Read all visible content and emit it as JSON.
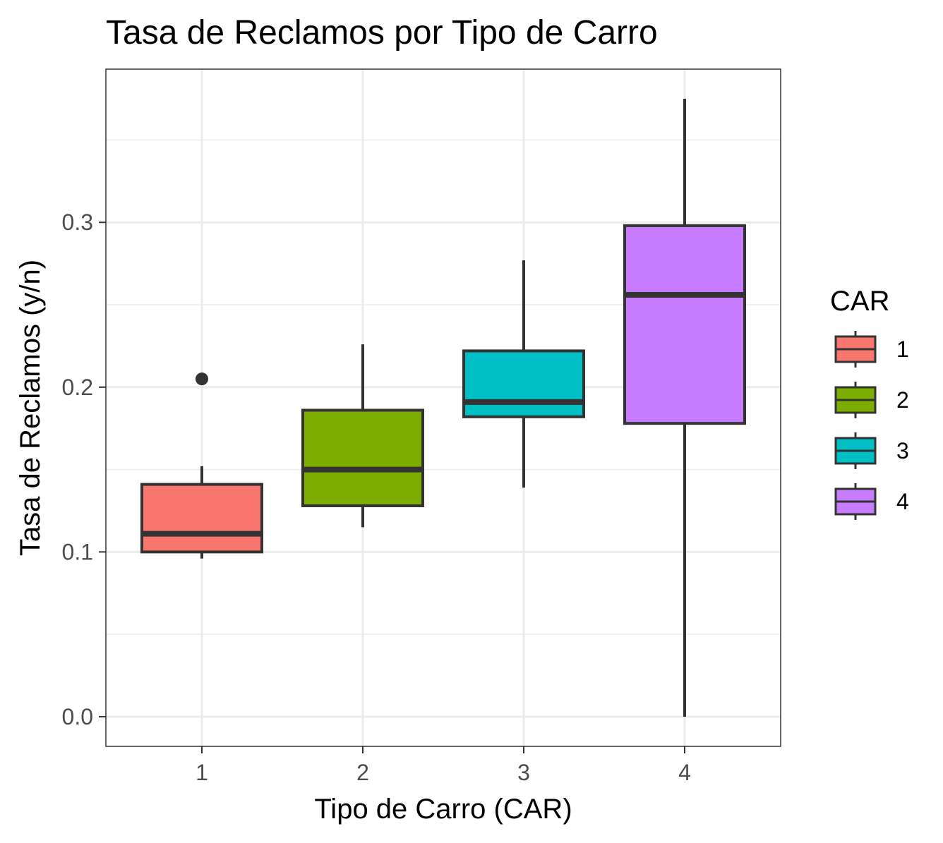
{
  "chart_data": {
    "type": "boxplot",
    "title": "Tasa de Reclamos por Tipo de Carro",
    "xlabel": "Tipo de Carro (CAR)",
    "ylabel": "Tasa de Reclamos (y/n)",
    "ylim": [
      -0.018,
      0.393
    ],
    "y_ticks": [
      "0.0",
      "0.1",
      "0.2",
      "0.3"
    ],
    "y_tick_values": [
      0.0,
      0.1,
      0.2,
      0.3
    ],
    "y_minor_values": [
      0.05,
      0.15,
      0.25,
      0.35
    ],
    "grid": true,
    "legend": {
      "title": "CAR",
      "position": "right",
      "entries": [
        "1",
        "2",
        "3",
        "4"
      ]
    },
    "categories": [
      "1",
      "2",
      "3",
      "4"
    ],
    "colors": [
      "#F8766D",
      "#7CAE00",
      "#00BFC4",
      "#C77CFF"
    ],
    "boxes": [
      {
        "category": "1",
        "whisker_low": 0.096,
        "q1": 0.1,
        "median": 0.111,
        "q3": 0.141,
        "whisker_high": 0.152,
        "outliers": [
          0.205
        ]
      },
      {
        "category": "2",
        "whisker_low": 0.115,
        "q1": 0.128,
        "median": 0.15,
        "q3": 0.186,
        "whisker_high": 0.226,
        "outliers": []
      },
      {
        "category": "3",
        "whisker_low": 0.139,
        "q1": 0.182,
        "median": 0.191,
        "q3": 0.222,
        "whisker_high": 0.277,
        "outliers": []
      },
      {
        "category": "4",
        "whisker_low": 0.0,
        "q1": 0.178,
        "median": 0.256,
        "q3": 0.298,
        "whisker_high": 0.375,
        "outliers": []
      }
    ]
  }
}
